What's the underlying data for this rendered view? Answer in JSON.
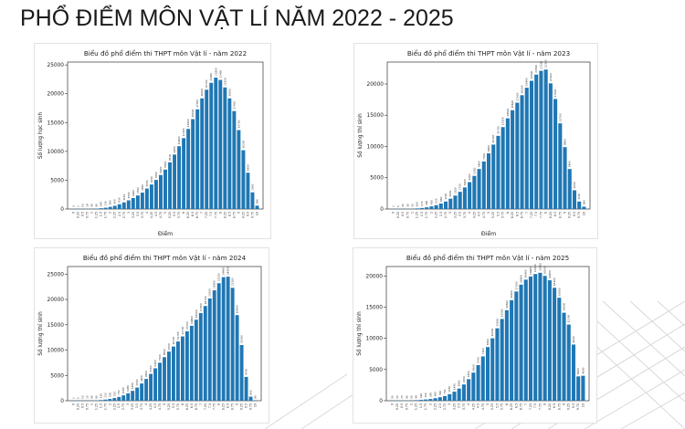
{
  "slide": {
    "title": "PHỔ ĐIỂM MÔN VẬT LÍ NĂM 2022 - 2025"
  },
  "chart_data": [
    {
      "type": "bar",
      "title": "Biểu đồ phổ điểm thi THPT môn Vật lí - năm 2022",
      "xlabel": "Điểm",
      "ylabel": "Số lượng học sinh",
      "ylim": [
        0,
        25500
      ],
      "yticks": [
        0,
        5000,
        10000,
        15000,
        20000,
        25000
      ],
      "bar_color": "#1f77b4",
      "categories": [
        "0",
        "0.25",
        "0.5",
        "0.75",
        "1",
        "1.25",
        "1.5",
        "1.75",
        "2",
        "2.25",
        "2.5",
        "2.75",
        "3",
        "3.25",
        "3.5",
        "3.75",
        "4",
        "4.25",
        "4.5",
        "4.75",
        "5",
        "5.25",
        "5.5",
        "5.75",
        "6",
        "6.25",
        "6.5",
        "6.75",
        "7",
        "7.25",
        "7.5",
        "7.75",
        "8",
        "8.25",
        "8.5",
        "8.75",
        "9",
        "9.25",
        "9.5",
        "9.75",
        "10"
      ],
      "values": [
        3,
        2,
        10,
        28,
        45,
        80,
        140,
        230,
        380,
        560,
        830,
        1150,
        1500,
        1900,
        2350,
        2850,
        3550,
        4250,
        5050,
        5900,
        6850,
        8100,
        9450,
        10900,
        12300,
        13900,
        15600,
        17300,
        19200,
        20700,
        21900,
        22800,
        22400,
        21100,
        19200,
        17000,
        13700,
        10200,
        6300,
        2900,
        590
      ]
    },
    {
      "type": "bar",
      "title": "Biểu đồ phổ điểm thi THPT môn Vật lí - năm 2023",
      "xlabel": "Điểm",
      "ylabel": "Số lượng thí sinh",
      "ylim": [
        0,
        23500
      ],
      "yticks": [
        0,
        5000,
        10000,
        15000,
        20000
      ],
      "bar_color": "#1f77b4",
      "categories": [
        "0",
        "0.25",
        "0.5",
        "0.75",
        "1",
        "1.25",
        "1.5",
        "1.75",
        "2",
        "2.25",
        "2.5",
        "2.75",
        "3",
        "3.25",
        "3.5",
        "3.75",
        "4",
        "4.25",
        "4.5",
        "4.75",
        "5",
        "5.25",
        "5.5",
        "5.75",
        "6",
        "6.25",
        "6.5",
        "6.75",
        "7",
        "7.25",
        "7.5",
        "7.75",
        "8",
        "8.25",
        "8.5",
        "8.75",
        "9",
        "9.25",
        "9.5",
        "9.75",
        "10"
      ],
      "values": [
        2,
        5,
        10,
        30,
        55,
        100,
        170,
        280,
        420,
        620,
        880,
        1200,
        1650,
        2150,
        2750,
        3450,
        4300,
        5300,
        6400,
        7600,
        8900,
        10300,
        11700,
        13100,
        14500,
        15800,
        17000,
        18200,
        19400,
        20500,
        21500,
        22100,
        22300,
        20100,
        17600,
        13700,
        9900,
        6400,
        3000,
        1200,
        380
      ]
    },
    {
      "type": "bar",
      "title": "Biểu đồ phổ điểm thi THPT môn Vật lí - năm 2024",
      "xlabel": "",
      "ylabel": "Số lượng thí sinh",
      "ylim": [
        0,
        26500
      ],
      "yticks": [
        0,
        5000,
        10000,
        15000,
        20000,
        25000
      ],
      "bar_color": "#1f77b4",
      "categories": [
        "0",
        "0.25",
        "0.5",
        "0.75",
        "1",
        "1.25",
        "1.5",
        "1.75",
        "2",
        "2.25",
        "2.5",
        "2.75",
        "3",
        "3.25",
        "3.5",
        "3.75",
        "4",
        "4.25",
        "4.5",
        "4.75",
        "5",
        "5.25",
        "5.5",
        "5.75",
        "6",
        "6.25",
        "6.5",
        "6.75",
        "7",
        "7.25",
        "7.5",
        "7.75",
        "8",
        "8.25",
        "8.5",
        "8.75",
        "9",
        "9.25",
        "9.5",
        "9.75",
        "10"
      ],
      "values": [
        2,
        5,
        10,
        25,
        45,
        80,
        130,
        220,
        350,
        520,
        750,
        1050,
        1450,
        1950,
        2600,
        3400,
        4300,
        5300,
        6400,
        7500,
        8600,
        9700,
        10700,
        11700,
        12700,
        13700,
        14800,
        16000,
        17300,
        18700,
        20200,
        21800,
        23200,
        24400,
        24500,
        22300,
        16900,
        11000,
        4700,
        800,
        80
      ]
    },
    {
      "type": "bar",
      "title": "Biểu đồ phổ điểm thi THPT môn Vật lí - năm 2025",
      "xlabel": "",
      "ylabel": "Số lượng thí sinh",
      "ylim": [
        0,
        21500
      ],
      "yticks": [
        0,
        5000,
        10000,
        15000,
        20000
      ],
      "bar_color": "#1f77b4",
      "categories": [
        "0",
        "0.25",
        "0.5",
        "0.75",
        "1",
        "1.25",
        "1.5",
        "1.75",
        "2",
        "2.25",
        "2.5",
        "2.75",
        "3",
        "3.25",
        "3.5",
        "3.75",
        "4",
        "4.25",
        "4.5",
        "4.75",
        "5",
        "5.25",
        "5.5",
        "5.75",
        "6",
        "6.25",
        "6.5",
        "6.75",
        "7",
        "7.25",
        "7.5",
        "7.75",
        "8",
        "8.25",
        "8.5",
        "8.75",
        "9",
        "9.25",
        "9.5",
        "9.75",
        "10"
      ],
      "values": [
        10,
        15,
        25,
        40,
        60,
        90,
        140,
        200,
        280,
        400,
        560,
        750,
        1050,
        1450,
        1950,
        2600,
        3450,
        4500,
        5700,
        7100,
        8600,
        10000,
        11600,
        13100,
        14500,
        16100,
        17500,
        18600,
        19400,
        19900,
        20300,
        20500,
        20000,
        19300,
        18100,
        16500,
        14100,
        12200,
        9000,
        3900,
        4000
      ]
    }
  ]
}
